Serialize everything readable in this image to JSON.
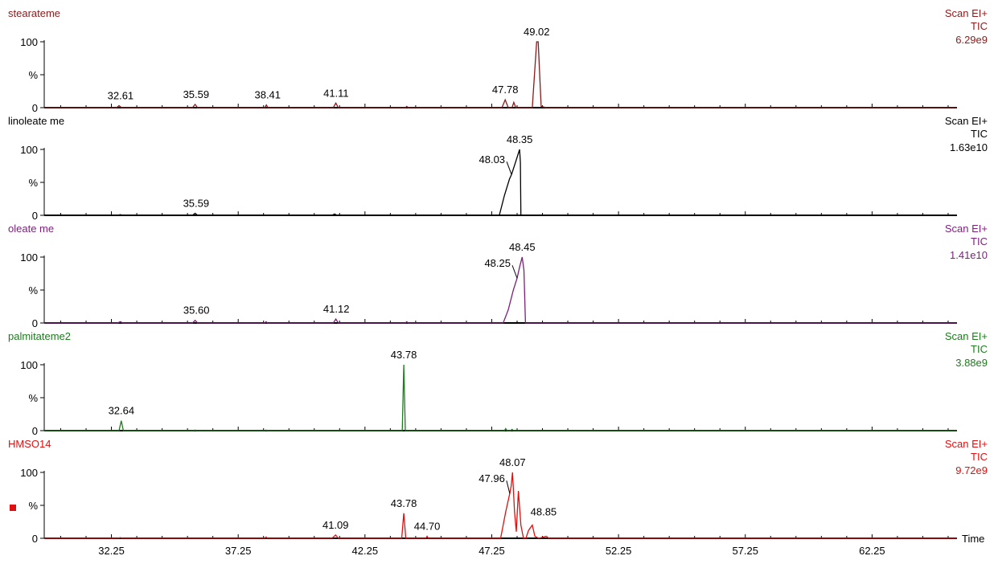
{
  "chart_data": {
    "type": "line",
    "x_axis": {
      "label": "Time",
      "range": [
        29.6,
        65.6
      ],
      "ticks": [
        32.25,
        37.25,
        42.25,
        47.25,
        52.25,
        57.25,
        62.25
      ],
      "tick_labels": [
        "32.25",
        "37.25",
        "42.25",
        "47.25",
        "52.25",
        "57.25",
        "62.25"
      ],
      "minor_step": 1
    },
    "y_axis": {
      "range": [
        0,
        100
      ],
      "tick_labels": [
        "0",
        "%",
        "100"
      ]
    },
    "panels": [
      {
        "name": "stearateme",
        "scan": "Scan EI+",
        "tic": "TIC",
        "intensity": "6.29e9",
        "color": "#8b1a1a",
        "points": [
          [
            29.6,
            0
          ],
          [
            32.45,
            0
          ],
          [
            32.55,
            3
          ],
          [
            32.65,
            0
          ],
          [
            35.45,
            0
          ],
          [
            35.55,
            5
          ],
          [
            35.65,
            0
          ],
          [
            38.3,
            0
          ],
          [
            38.36,
            4
          ],
          [
            38.42,
            0
          ],
          [
            41.0,
            0
          ],
          [
            41.1,
            7
          ],
          [
            41.2,
            0
          ],
          [
            43.85,
            0
          ],
          [
            43.9,
            2
          ],
          [
            43.95,
            0
          ],
          [
            45.2,
            0
          ],
          [
            45.25,
            1
          ],
          [
            45.3,
            0
          ],
          [
            47.65,
            0
          ],
          [
            47.78,
            12
          ],
          [
            47.9,
            0
          ],
          [
            48.05,
            0
          ],
          [
            48.12,
            8
          ],
          [
            48.2,
            0
          ],
          [
            48.85,
            0
          ],
          [
            49.02,
            100
          ],
          [
            49.08,
            100
          ],
          [
            49.2,
            2
          ],
          [
            49.4,
            0
          ],
          [
            65.6,
            0
          ]
        ],
        "peaks": [
          {
            "label": "32.61",
            "x": 32.61,
            "y": 3
          },
          {
            "label": "35.59",
            "x": 35.59,
            "y": 5
          },
          {
            "label": "38.41",
            "x": 38.41,
            "y": 4
          },
          {
            "label": "41.11",
            "x": 41.11,
            "y": 7
          },
          {
            "label": "47.78",
            "x": 47.78,
            "y": 12
          },
          {
            "label": "49.02",
            "x": 49.02,
            "y": 100
          }
        ]
      },
      {
        "name": "linoleate me",
        "scan": "Scan EI+",
        "tic": "TIC",
        "intensity": "1.63e10",
        "color": "#000000",
        "points": [
          [
            29.6,
            0
          ],
          [
            32.5,
            0
          ],
          [
            32.6,
            1
          ],
          [
            32.7,
            0
          ],
          [
            35.45,
            0
          ],
          [
            35.55,
            3
          ],
          [
            35.65,
            0
          ],
          [
            40.95,
            0
          ],
          [
            41.05,
            2
          ],
          [
            41.15,
            0
          ],
          [
            47.55,
            0
          ],
          [
            47.75,
            30
          ],
          [
            47.95,
            55
          ],
          [
            48.03,
            62
          ],
          [
            48.2,
            82
          ],
          [
            48.35,
            100
          ],
          [
            48.38,
            80
          ],
          [
            48.4,
            0
          ],
          [
            65.6,
            0
          ]
        ],
        "peaks": [
          {
            "label": "35.59",
            "x": 35.59,
            "y": 3
          },
          {
            "label": "48.03",
            "x": 48.03,
            "y": 62
          },
          {
            "label": "48.35",
            "x": 48.35,
            "y": 100
          }
        ]
      },
      {
        "name": "oleate me",
        "scan": "Scan EI+",
        "tic": "TIC",
        "intensity": "1.41e10",
        "color": "#7b1f7b",
        "points": [
          [
            29.6,
            0
          ],
          [
            32.5,
            0
          ],
          [
            32.6,
            2
          ],
          [
            32.7,
            0
          ],
          [
            35.45,
            0
          ],
          [
            35.55,
            4
          ],
          [
            35.65,
            0
          ],
          [
            38.3,
            0
          ],
          [
            38.35,
            2
          ],
          [
            38.4,
            0
          ],
          [
            41.0,
            0
          ],
          [
            41.1,
            6
          ],
          [
            41.2,
            0
          ],
          [
            43.85,
            0
          ],
          [
            43.9,
            2
          ],
          [
            43.95,
            0
          ],
          [
            47.7,
            0
          ],
          [
            47.9,
            20
          ],
          [
            48.1,
            50
          ],
          [
            48.25,
            68
          ],
          [
            48.35,
            85
          ],
          [
            48.45,
            100
          ],
          [
            48.52,
            80
          ],
          [
            48.58,
            0
          ],
          [
            65.6,
            0
          ]
        ],
        "peaks": [
          {
            "label": "35.60",
            "x": 35.6,
            "y": 4
          },
          {
            "label": "41.12",
            "x": 41.12,
            "y": 6
          },
          {
            "label": "48.25",
            "x": 48.25,
            "y": 68
          },
          {
            "label": "48.45",
            "x": 48.45,
            "y": 100
          }
        ]
      },
      {
        "name": "palmitateme2",
        "scan": "Scan EI+",
        "tic": "TIC",
        "intensity": "3.88e9",
        "color": "#1e7b1e",
        "points": [
          [
            29.6,
            0
          ],
          [
            32.55,
            0
          ],
          [
            32.64,
            15
          ],
          [
            32.72,
            0
          ],
          [
            35.5,
            0
          ],
          [
            35.55,
            1
          ],
          [
            35.6,
            0
          ],
          [
            38.3,
            0
          ],
          [
            38.35,
            1
          ],
          [
            38.4,
            0
          ],
          [
            43.72,
            0
          ],
          [
            43.78,
            100
          ],
          [
            43.84,
            0
          ],
          [
            47.75,
            0
          ],
          [
            47.8,
            3
          ],
          [
            47.85,
            0
          ],
          [
            48.0,
            0
          ],
          [
            48.05,
            2
          ],
          [
            48.1,
            0
          ],
          [
            65.6,
            0
          ]
        ],
        "peaks": [
          {
            "label": "32.64",
            "x": 32.64,
            "y": 15
          },
          {
            "label": "43.78",
            "x": 43.78,
            "y": 100
          }
        ]
      },
      {
        "name": "HMSO14",
        "scan": "Scan EI+",
        "tic": "TIC",
        "intensity": "9.72e9",
        "color": "#dd1111",
        "points": [
          [
            29.6,
            0
          ],
          [
            32.5,
            0
          ],
          [
            32.6,
            1
          ],
          [
            32.7,
            0
          ],
          [
            38.3,
            0
          ],
          [
            38.35,
            2
          ],
          [
            38.4,
            0
          ],
          [
            40.95,
            0
          ],
          [
            41.09,
            5
          ],
          [
            41.2,
            0
          ],
          [
            43.7,
            0
          ],
          [
            43.78,
            38
          ],
          [
            43.86,
            0
          ],
          [
            44.65,
            0
          ],
          [
            44.7,
            3
          ],
          [
            44.75,
            0
          ],
          [
            47.6,
            0
          ],
          [
            47.8,
            40
          ],
          [
            47.96,
            68
          ],
          [
            48.02,
            80
          ],
          [
            48.07,
            100
          ],
          [
            48.15,
            40
          ],
          [
            48.22,
            10
          ],
          [
            48.3,
            72
          ],
          [
            48.4,
            20
          ],
          [
            48.5,
            0
          ],
          [
            48.6,
            0
          ],
          [
            48.7,
            12
          ],
          [
            48.85,
            20
          ],
          [
            48.95,
            3
          ],
          [
            49.1,
            0
          ],
          [
            49.4,
            3
          ],
          [
            49.5,
            0
          ],
          [
            65.6,
            0
          ]
        ],
        "peaks": [
          {
            "label": "41.09",
            "x": 41.09,
            "y": 5
          },
          {
            "label": "43.78",
            "x": 43.78,
            "y": 38
          },
          {
            "label": "44.70",
            "x": 44.7,
            "y": 3
          },
          {
            "label": "47.96",
            "x": 47.96,
            "y": 68
          },
          {
            "label": "48.07",
            "x": 48.07,
            "y": 100
          },
          {
            "label": "48.85",
            "x": 48.85,
            "y": 20
          }
        ]
      }
    ]
  }
}
